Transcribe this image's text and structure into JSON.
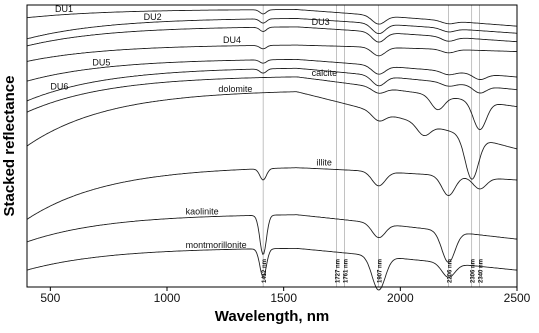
{
  "chart_data": {
    "type": "line",
    "xlabel": "Wavelength, nm",
    "ylabel": "Stacked reflectance",
    "xlim": [
      400,
      2500
    ],
    "x_ticks": [
      500,
      1000,
      1500,
      2000,
      2500
    ],
    "grid": false,
    "reference_lines": [
      {
        "x": 1412,
        "label": "1412 nm"
      },
      {
        "x": 1727,
        "label": "1727 nm"
      },
      {
        "x": 1761,
        "label": "1761 nm"
      },
      {
        "x": 1907,
        "label": "1907 nm"
      },
      {
        "x": 2206,
        "label": "2206 nm"
      },
      {
        "x": 2306,
        "label": "2306 nm"
      },
      {
        "x": 2340,
        "label": "2340 nm"
      }
    ],
    "series": [
      {
        "name": "DU1",
        "label_x": 520,
        "base": 0.985,
        "end": 0.925,
        "start": 0.955,
        "absorptions": [
          [
            1412,
            0.015
          ],
          [
            1907,
            0.03
          ],
          [
            2206,
            0.01
          ]
        ]
      },
      {
        "name": "DU2",
        "label_x": 900,
        "base": 0.955,
        "end": 0.9,
        "start": 0.88,
        "absorptions": [
          [
            1412,
            0.015
          ],
          [
            1907,
            0.035
          ],
          [
            2206,
            0.012
          ]
        ]
      },
      {
        "name": "DU3",
        "label_x": 1620,
        "base": 0.925,
        "end": 0.87,
        "start": 0.855,
        "absorptions": [
          [
            1412,
            0.015
          ],
          [
            1907,
            0.035
          ],
          [
            2206,
            0.015
          ]
        ]
      },
      {
        "name": "DU4",
        "label_x": 1240,
        "base": 0.86,
        "end": 0.835,
        "start": 0.8,
        "absorptions": [
          [
            1412,
            0.012
          ],
          [
            1907,
            0.03
          ],
          [
            2206,
            0.012
          ]
        ]
      },
      {
        "name": "DU5",
        "label_x": 680,
        "base": 0.81,
        "end": 0.745,
        "start": 0.73,
        "absorptions": [
          [
            1412,
            0.012
          ],
          [
            1907,
            0.03
          ],
          [
            2206,
            0.012
          ],
          [
            2340,
            0.02
          ]
        ]
      },
      {
        "name": "DU6",
        "label_x": 500,
        "base": 0.78,
        "end": 0.7,
        "start": 0.66,
        "absorptions": [
          [
            1412,
            0.015
          ],
          [
            1907,
            0.035
          ],
          [
            2206,
            0.012
          ],
          [
            2340,
            0.025
          ]
        ]
      },
      {
        "name": "calcite",
        "label_x": 1620,
        "base": 0.75,
        "end": 0.64,
        "start": 0.62,
        "absorptions": [
          [
            1907,
            0.02
          ],
          [
            2160,
            0.05
          ],
          [
            2340,
            0.1
          ]
        ]
      },
      {
        "name": "dolomite",
        "label_x": 1220,
        "base": 0.7,
        "end": 0.49,
        "start": 0.5,
        "absorptions": [
          [
            1907,
            0.03
          ],
          [
            2100,
            0.04
          ],
          [
            2306,
            0.15
          ]
        ]
      },
      {
        "name": "illite",
        "label_x": 1640,
        "base": 0.43,
        "end": 0.38,
        "start": 0.24,
        "absorptions": [
          [
            1412,
            0.04
          ],
          [
            1907,
            0.05
          ],
          [
            2206,
            0.07
          ],
          [
            2340,
            0.04
          ]
        ]
      },
      {
        "name": "kaolinite",
        "label_x": 1080,
        "base": 0.26,
        "end": 0.17,
        "start": 0.16,
        "absorptions": [
          [
            1412,
            0.14
          ],
          [
            1907,
            0.05
          ],
          [
            2206,
            0.11
          ]
        ]
      },
      {
        "name": "montmorillonite",
        "label_x": 1080,
        "base": 0.14,
        "end": 0.06,
        "start": 0.06,
        "absorptions": [
          [
            1412,
            0.1
          ],
          [
            1907,
            0.12
          ],
          [
            2206,
            0.05
          ]
        ]
      }
    ]
  }
}
